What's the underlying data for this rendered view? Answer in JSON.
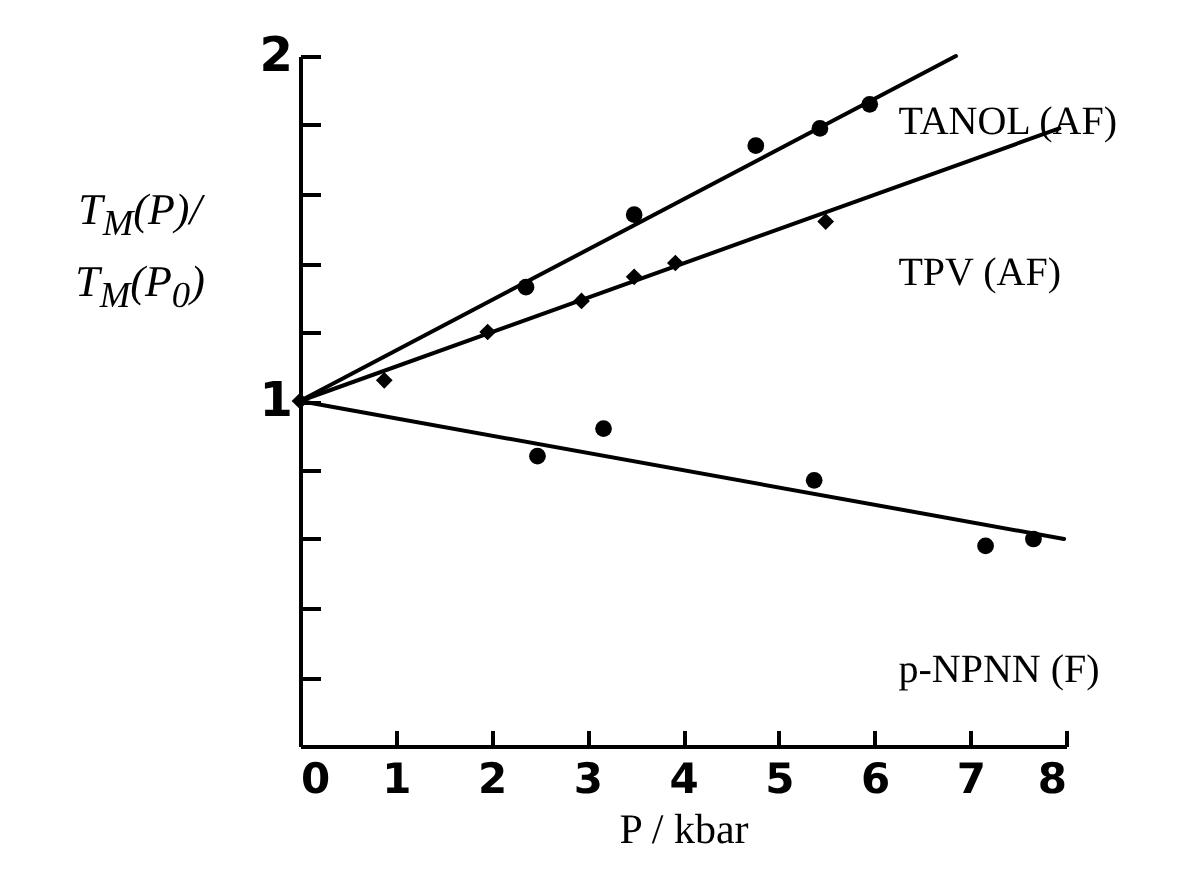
{
  "chart_data": {
    "type": "scatter",
    "xlabel": "P / kbar",
    "ylabel": "T$_{M}$(P)/T$_{M}$(P$_{0}$)",
    "xlim": [
      0,
      8
    ],
    "ylim": [
      0,
      2
    ],
    "xticks": [
      0,
      1,
      2,
      3,
      4,
      5,
      6,
      7,
      8
    ],
    "yticks": [
      {
        "value": 0.2,
        "label": null
      },
      {
        "value": 0.4,
        "label": null
      },
      {
        "value": 0.6,
        "label": null
      },
      {
        "value": 0.8,
        "label": null
      },
      1,
      {
        "value": 1.2,
        "label": null
      },
      {
        "value": 1.4,
        "label": null
      },
      {
        "value": 1.6,
        "label": null
      },
      {
        "value": 1.8,
        "label": null
      },
      2
    ],
    "grid": false,
    "legend": false,
    "line_style": "solid",
    "series": [
      {
        "name": "TANOL (AF)",
        "color": "#000000",
        "marker": "circle",
        "x": [
          2.36,
          3.49,
          4.76,
          5.43,
          5.95
        ],
        "values": [
          1.33,
          1.54,
          1.74,
          1.79,
          1.86
        ]
      },
      {
        "name": "TPV (AF)",
        "color": "#000000",
        "marker": "diamond",
        "x": [
          0,
          0.88,
          1.96,
          2.94,
          3.49,
          3.92,
          5.49
        ],
        "values": [
          1,
          1.06,
          1.2,
          1.29,
          1.36,
          1.4,
          1.52
        ]
      },
      {
        "name": "p-NPNN (F)",
        "color": "#000000",
        "marker": "circle",
        "x": [
          2.48,
          3.17,
          5.37,
          7.16,
          7.66
        ],
        "values": [
          0.84,
          0.92,
          0.77,
          0.58,
          0.6
        ]
      },
      {
        "type": "line",
        "color": "#000000",
        "x": [
          0,
          6.85
        ],
        "values": [
          1,
          2.0
        ]
      },
      {
        "type": "line",
        "color": "#000000",
        "x": [
          0,
          7.93
        ],
        "values": [
          1,
          1.79
        ]
      },
      {
        "type": "line",
        "color": "#000000",
        "x": [
          0,
          7.98
        ],
        "values": [
          1,
          0.6
        ]
      }
    ]
  }
}
